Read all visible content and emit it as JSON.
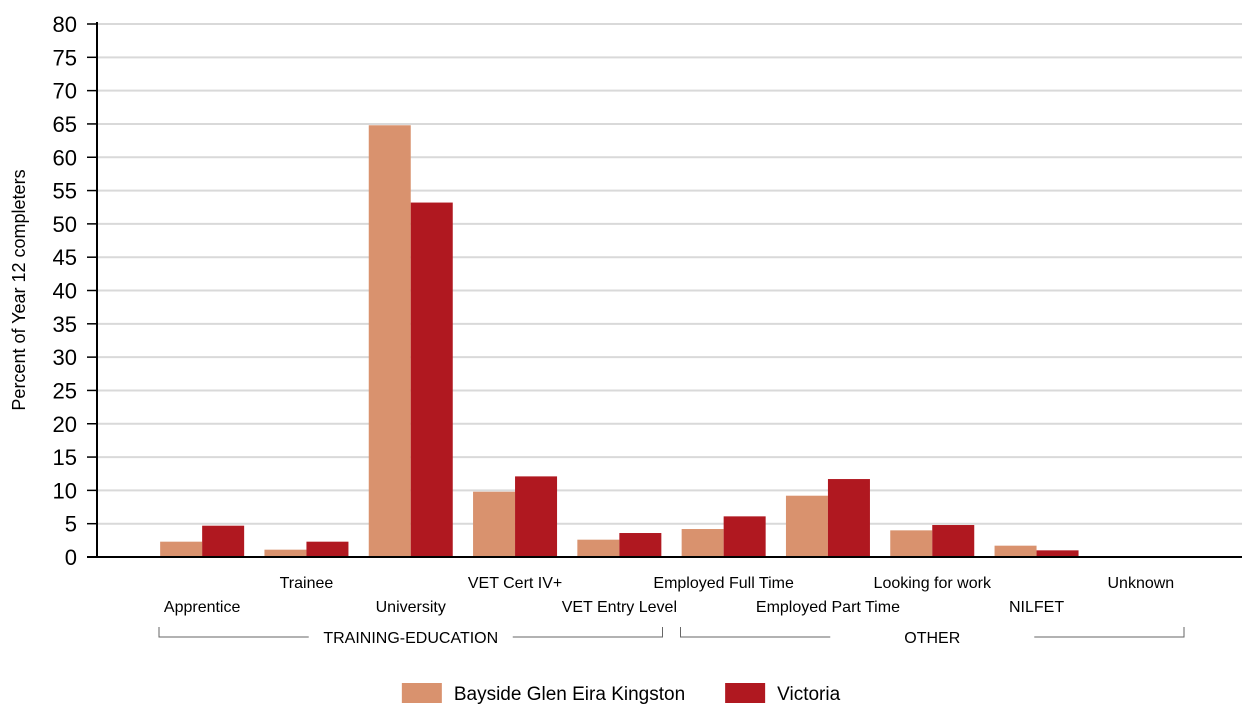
{
  "chart_data": {
    "type": "bar",
    "ylabel": "Percent of Year 12 completers",
    "xlabel": "",
    "ylim": [
      0,
      80
    ],
    "ytick_step": 5,
    "grid": true,
    "legend_position": "bottom",
    "categories": [
      "Apprentice",
      "Trainee",
      "University",
      "VET Cert IV+",
      "VET Entry Level",
      "Employed Full Time",
      "Employed Part Time",
      "Looking for work",
      "NILFET",
      "Unknown"
    ],
    "series": [
      {
        "name": "Bayside Glen Eira Kingston",
        "color": "#d9926e",
        "values": [
          2.3,
          1.1,
          64.8,
          9.8,
          2.6,
          4.2,
          9.2,
          4.0,
          1.7,
          0
        ]
      },
      {
        "name": "Victoria",
        "color": "#b01820",
        "values": [
          4.7,
          2.3,
          53.2,
          12.1,
          3.6,
          6.1,
          11.7,
          4.8,
          1.0,
          0
        ]
      }
    ],
    "groups": [
      {
        "label": "TRAINING-EDUCATION",
        "from": 0,
        "to": 4
      },
      {
        "label": "OTHER",
        "from": 5,
        "to": 9
      }
    ]
  }
}
